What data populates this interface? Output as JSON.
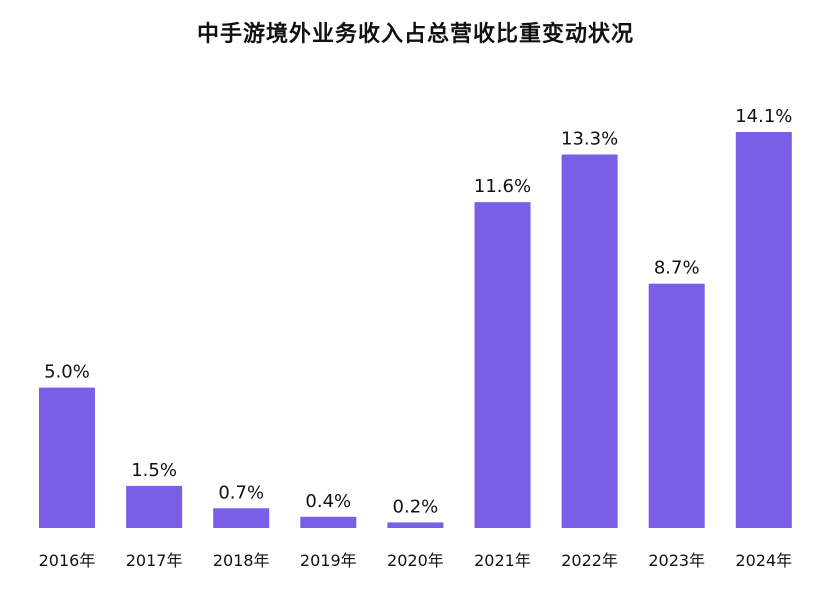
{
  "chart_data": {
    "type": "bar",
    "title": "中手游境外业务收入占总营收比重变动状况",
    "categories": [
      "2016年",
      "2017年",
      "2018年",
      "2019年",
      "2020年",
      "2021年",
      "2022年",
      "2023年",
      "2024年"
    ],
    "values": [
      5.0,
      1.5,
      0.7,
      0.4,
      0.2,
      11.6,
      13.3,
      8.7,
      14.1
    ],
    "value_labels": [
      "5.0%",
      "1.5%",
      "0.7%",
      "0.4%",
      "0.2%",
      "11.6%",
      "13.3%",
      "8.7%",
      "14.1%"
    ],
    "xlabel": "",
    "ylabel": "",
    "ylim": [
      0,
      14.1
    ],
    "grid": false,
    "bar_color": "#7a5ee6"
  }
}
